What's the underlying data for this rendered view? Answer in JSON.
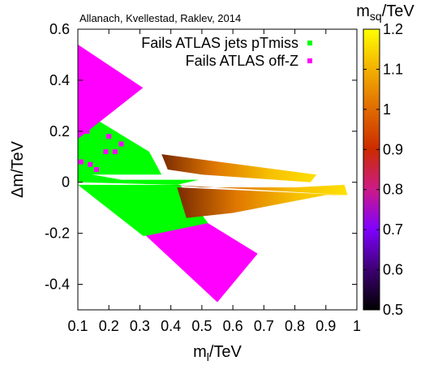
{
  "chart_data": {
    "type": "scatter",
    "title": "",
    "credit": "Allanach, Kvellestad, Raklev, 2014",
    "xlabel": {
      "base": "m",
      "sub": "l",
      "unit": "/TeV"
    },
    "ylabel": "Δm/TeV",
    "xlim": [
      0.1,
      1.0
    ],
    "ylim": [
      -0.5,
      0.6
    ],
    "xticks": [
      0.1,
      0.2,
      0.3,
      0.4,
      0.5,
      0.6,
      0.7,
      0.8,
      0.9,
      1.0
    ],
    "xtick_labels": [
      "0.1",
      "0.2",
      "0.3",
      "0.4",
      "0.5",
      "0.6",
      "0.7",
      "0.8",
      "0.9",
      "1"
    ],
    "yticks": [
      -0.4,
      -0.2,
      0,
      0.2,
      0.4,
      0.6
    ],
    "ytick_labels": [
      "-0.4",
      "-0.2",
      "0",
      "0.2",
      "0.4",
      "0.6"
    ],
    "grid": false,
    "legend_position": "top-left",
    "series": [
      {
        "name": "Fails ATLAS jets pTmiss",
        "color": "#00ff00",
        "regions": [
          {
            "polygon": [
              [
                0.1,
                0.29
              ],
              [
                0.33,
                0.12
              ],
              [
                0.37,
                0.03
              ],
              [
                0.1,
                0.03
              ]
            ]
          },
          {
            "polygon": [
              [
                0.1,
                0.04
              ],
              [
                0.24,
                0.01
              ],
              [
                0.49,
                0.01
              ],
              [
                0.42,
                -0.01
              ],
              [
                0.1,
                0.0
              ]
            ]
          },
          {
            "polygon": [
              [
                0.1,
                -0.01
              ],
              [
                0.43,
                -0.01
              ],
              [
                0.52,
                -0.16
              ],
              [
                0.37,
                -0.21
              ],
              [
                0.31,
                -0.21
              ]
            ]
          }
        ]
      },
      {
        "name": "Fails ATLAS off-Z",
        "color": "#ff00ff",
        "regions": [
          {
            "polygon": [
              [
                0.1,
                0.54
              ],
              [
                0.31,
                0.37
              ],
              [
                0.1,
                0.17
              ]
            ]
          },
          {
            "polygon": [
              [
                0.32,
                -0.21
              ],
              [
                0.55,
                -0.47
              ],
              [
                0.68,
                -0.28
              ],
              [
                0.52,
                -0.16
              ]
            ]
          }
        ],
        "scatter": [
          [
            0.13,
            0.2
          ],
          [
            0.2,
            0.18
          ],
          [
            0.24,
            0.15
          ],
          [
            0.22,
            0.12
          ],
          [
            0.14,
            0.07
          ],
          [
            0.19,
            0.12
          ],
          [
            0.16,
            0.05
          ],
          [
            0.11,
            0.08
          ]
        ]
      }
    ],
    "color_scale": {
      "label": {
        "base": "m",
        "sub": "sq",
        "unit": "/TeV"
      },
      "min": 0.5,
      "max": 1.2,
      "ticks": [
        0.5,
        0.6,
        0.7,
        0.8,
        0.9,
        1.0,
        1.1,
        1.2
      ],
      "tick_labels": [
        "0.5",
        "0.6",
        "0.7",
        "0.8",
        "0.9",
        "1",
        "1.1",
        "1.2"
      ],
      "colors": [
        "#000000",
        "#3d0072",
        "#7f00ff",
        "#cc1a88",
        "#cc2a00",
        "#e06a00",
        "#f3b000",
        "#ffff00"
      ]
    },
    "colored_regions": [
      {
        "polygon": [
          [
            0.37,
            0.11
          ],
          [
            0.87,
            0.03
          ],
          [
            0.85,
            0.0
          ],
          [
            0.5,
            0.03
          ],
          [
            0.39,
            0.05
          ]
        ],
        "msq_range": [
          0.85,
          1.1
        ]
      },
      {
        "polygon": [
          [
            0.4,
            -0.01
          ],
          [
            0.97,
            -0.05
          ],
          [
            0.96,
            -0.01
          ],
          [
            0.8,
            -0.02
          ],
          [
            0.5,
            -0.02
          ]
        ],
        "msq_range": [
          0.8,
          1.15
        ]
      },
      {
        "polygon": [
          [
            0.42,
            -0.02
          ],
          [
            0.97,
            -0.05
          ],
          [
            0.9,
            -0.05
          ],
          [
            0.6,
            -0.12
          ],
          [
            0.45,
            -0.14
          ]
        ],
        "msq_range": [
          0.78,
          1.2
        ]
      }
    ]
  }
}
